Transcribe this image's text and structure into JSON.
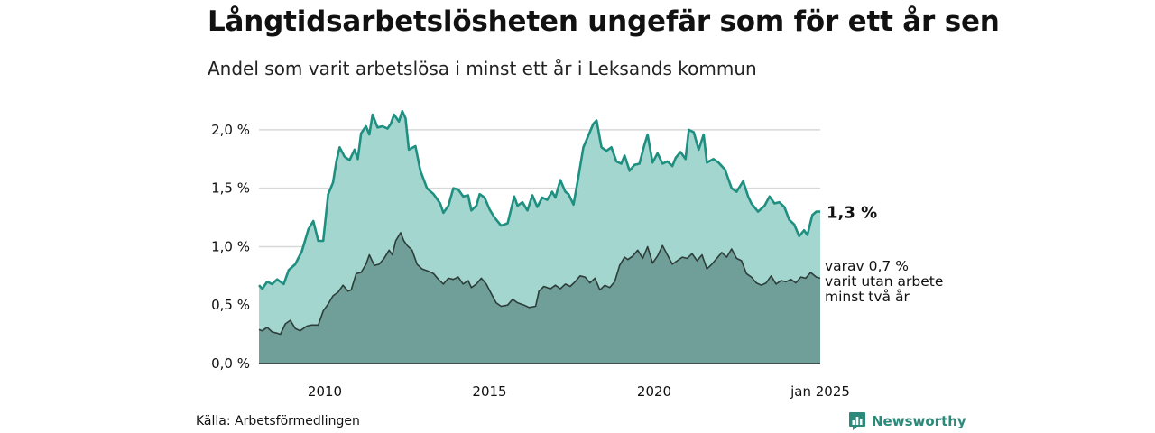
{
  "header": {
    "title": "Långtidsarbetslösheten ungefär som för ett år sen",
    "subtitle": "Andel som varit arbetslösa i minst ett år i Leksands kommun"
  },
  "footer": {
    "source": "Källa: Arbetsförmedlingen",
    "brand": "Newsworthy"
  },
  "colors": {
    "total_line": "#1e8f80",
    "total_fill": "#a3d6cf",
    "long_line": "#2d3d3a",
    "long_fill": "#6f9f98",
    "grid": "#d8d8d8"
  },
  "icons": {
    "brand_logo": "newsworthy-bar-icon"
  },
  "chart_data": {
    "type": "area",
    "x_start": "2008-01",
    "x_end": "2025-01",
    "x_ticks": [
      {
        "value": 2010,
        "label": "2010"
      },
      {
        "value": 2015,
        "label": "2015"
      },
      {
        "value": 2020,
        "label": "2020"
      },
      {
        "value": 2025.04,
        "label": "jan 2025"
      }
    ],
    "y_ticks": [
      {
        "value": 0.0,
        "label": "0,0 %"
      },
      {
        "value": 0.5,
        "label": "0,5 %"
      },
      {
        "value": 1.0,
        "label": "1,0 %"
      },
      {
        "value": 1.5,
        "label": "1,5 %"
      },
      {
        "value": 2.0,
        "label": "2,0 %"
      }
    ],
    "ylim": [
      0,
      2.2
    ],
    "grid": "horizontal",
    "series": [
      {
        "key": "total",
        "end_label": "1,3 %",
        "points": [
          [
            2008.0,
            0.67
          ],
          [
            2008.1,
            0.64
          ],
          [
            2008.25,
            0.7
          ],
          [
            2008.4,
            0.68
          ],
          [
            2008.55,
            0.72
          ],
          [
            2008.75,
            0.68
          ],
          [
            2008.9,
            0.8
          ],
          [
            2009.1,
            0.85
          ],
          [
            2009.3,
            0.96
          ],
          [
            2009.5,
            1.15
          ],
          [
            2009.65,
            1.22
          ],
          [
            2009.8,
            1.05
          ],
          [
            2009.95,
            1.05
          ],
          [
            2010.1,
            1.45
          ],
          [
            2010.25,
            1.55
          ],
          [
            2010.35,
            1.73
          ],
          [
            2010.45,
            1.85
          ],
          [
            2010.6,
            1.77
          ],
          [
            2010.75,
            1.74
          ],
          [
            2010.9,
            1.83
          ],
          [
            2011.0,
            1.75
          ],
          [
            2011.1,
            1.97
          ],
          [
            2011.25,
            2.03
          ],
          [
            2011.35,
            1.96
          ],
          [
            2011.45,
            2.13
          ],
          [
            2011.6,
            2.02
          ],
          [
            2011.75,
            2.03
          ],
          [
            2011.9,
            2.01
          ],
          [
            2012.0,
            2.05
          ],
          [
            2012.1,
            2.13
          ],
          [
            2012.25,
            2.07
          ],
          [
            2012.35,
            2.16
          ],
          [
            2012.45,
            2.1
          ],
          [
            2012.55,
            1.83
          ],
          [
            2012.75,
            1.86
          ],
          [
            2012.9,
            1.65
          ],
          [
            2013.1,
            1.5
          ],
          [
            2013.3,
            1.45
          ],
          [
            2013.5,
            1.37
          ],
          [
            2013.6,
            1.29
          ],
          [
            2013.75,
            1.35
          ],
          [
            2013.9,
            1.5
          ],
          [
            2014.05,
            1.49
          ],
          [
            2014.2,
            1.43
          ],
          [
            2014.35,
            1.44
          ],
          [
            2014.45,
            1.31
          ],
          [
            2014.6,
            1.35
          ],
          [
            2014.7,
            1.45
          ],
          [
            2014.85,
            1.42
          ],
          [
            2015.0,
            1.32
          ],
          [
            2015.15,
            1.25
          ],
          [
            2015.35,
            1.18
          ],
          [
            2015.55,
            1.2
          ],
          [
            2015.75,
            1.43
          ],
          [
            2015.85,
            1.35
          ],
          [
            2016.0,
            1.38
          ],
          [
            2016.15,
            1.31
          ],
          [
            2016.3,
            1.44
          ],
          [
            2016.45,
            1.34
          ],
          [
            2016.6,
            1.42
          ],
          [
            2016.75,
            1.4
          ],
          [
            2016.9,
            1.47
          ],
          [
            2017.0,
            1.42
          ],
          [
            2017.15,
            1.57
          ],
          [
            2017.3,
            1.47
          ],
          [
            2017.4,
            1.45
          ],
          [
            2017.55,
            1.36
          ],
          [
            2017.7,
            1.6
          ],
          [
            2017.85,
            1.85
          ],
          [
            2018.0,
            1.95
          ],
          [
            2018.15,
            2.05
          ],
          [
            2018.25,
            2.08
          ],
          [
            2018.4,
            1.85
          ],
          [
            2018.55,
            1.82
          ],
          [
            2018.7,
            1.85
          ],
          [
            2018.85,
            1.73
          ],
          [
            2019.0,
            1.71
          ],
          [
            2019.1,
            1.78
          ],
          [
            2019.25,
            1.65
          ],
          [
            2019.4,
            1.7
          ],
          [
            2019.55,
            1.71
          ],
          [
            2019.7,
            1.87
          ],
          [
            2019.8,
            1.96
          ],
          [
            2019.95,
            1.72
          ],
          [
            2020.1,
            1.8
          ],
          [
            2020.25,
            1.71
          ],
          [
            2020.4,
            1.73
          ],
          [
            2020.55,
            1.69
          ],
          [
            2020.65,
            1.76
          ],
          [
            2020.8,
            1.81
          ],
          [
            2020.95,
            1.75
          ],
          [
            2021.05,
            2.0
          ],
          [
            2021.2,
            1.98
          ],
          [
            2021.35,
            1.83
          ],
          [
            2021.5,
            1.96
          ],
          [
            2021.6,
            1.72
          ],
          [
            2021.8,
            1.75
          ],
          [
            2021.95,
            1.72
          ],
          [
            2022.15,
            1.66
          ],
          [
            2022.35,
            1.5
          ],
          [
            2022.5,
            1.47
          ],
          [
            2022.7,
            1.56
          ],
          [
            2022.85,
            1.43
          ],
          [
            2022.95,
            1.37
          ],
          [
            2023.15,
            1.3
          ],
          [
            2023.35,
            1.35
          ],
          [
            2023.5,
            1.43
          ],
          [
            2023.65,
            1.37
          ],
          [
            2023.8,
            1.38
          ],
          [
            2023.95,
            1.34
          ],
          [
            2024.1,
            1.23
          ],
          [
            2024.25,
            1.19
          ],
          [
            2024.4,
            1.09
          ],
          [
            2024.55,
            1.14
          ],
          [
            2024.65,
            1.1
          ],
          [
            2024.8,
            1.27
          ],
          [
            2024.92,
            1.3
          ],
          [
            2025.04,
            1.3
          ]
        ]
      },
      {
        "key": "long",
        "end_label": "varav 0,7 %\nvarit utan arbete\nminst två år",
        "points": [
          [
            2008.0,
            0.29
          ],
          [
            2008.1,
            0.28
          ],
          [
            2008.25,
            0.31
          ],
          [
            2008.4,
            0.27
          ],
          [
            2008.55,
            0.26
          ],
          [
            2008.65,
            0.25
          ],
          [
            2008.8,
            0.34
          ],
          [
            2008.95,
            0.37
          ],
          [
            2009.1,
            0.3
          ],
          [
            2009.25,
            0.28
          ],
          [
            2009.45,
            0.32
          ],
          [
            2009.6,
            0.33
          ],
          [
            2009.8,
            0.33
          ],
          [
            2009.95,
            0.45
          ],
          [
            2010.1,
            0.51
          ],
          [
            2010.25,
            0.58
          ],
          [
            2010.4,
            0.61
          ],
          [
            2010.55,
            0.67
          ],
          [
            2010.7,
            0.62
          ],
          [
            2010.8,
            0.63
          ],
          [
            2010.95,
            0.77
          ],
          [
            2011.1,
            0.78
          ],
          [
            2011.25,
            0.85
          ],
          [
            2011.35,
            0.93
          ],
          [
            2011.5,
            0.84
          ],
          [
            2011.65,
            0.85
          ],
          [
            2011.8,
            0.9
          ],
          [
            2011.95,
            0.97
          ],
          [
            2012.05,
            0.93
          ],
          [
            2012.15,
            1.05
          ],
          [
            2012.3,
            1.12
          ],
          [
            2012.4,
            1.05
          ],
          [
            2012.5,
            1.01
          ],
          [
            2012.65,
            0.97
          ],
          [
            2012.8,
            0.85
          ],
          [
            2012.95,
            0.81
          ],
          [
            2013.15,
            0.79
          ],
          [
            2013.3,
            0.77
          ],
          [
            2013.45,
            0.72
          ],
          [
            2013.6,
            0.68
          ],
          [
            2013.75,
            0.73
          ],
          [
            2013.9,
            0.72
          ],
          [
            2014.05,
            0.74
          ],
          [
            2014.2,
            0.68
          ],
          [
            2014.35,
            0.71
          ],
          [
            2014.45,
            0.65
          ],
          [
            2014.6,
            0.68
          ],
          [
            2014.75,
            0.73
          ],
          [
            2014.9,
            0.68
          ],
          [
            2015.05,
            0.6
          ],
          [
            2015.2,
            0.52
          ],
          [
            2015.35,
            0.49
          ],
          [
            2015.55,
            0.5
          ],
          [
            2015.7,
            0.55
          ],
          [
            2015.85,
            0.52
          ],
          [
            2016.05,
            0.5
          ],
          [
            2016.2,
            0.48
          ],
          [
            2016.4,
            0.49
          ],
          [
            2016.5,
            0.62
          ],
          [
            2016.65,
            0.66
          ],
          [
            2016.85,
            0.64
          ],
          [
            2017.0,
            0.67
          ],
          [
            2017.15,
            0.64
          ],
          [
            2017.3,
            0.68
          ],
          [
            2017.45,
            0.66
          ],
          [
            2017.6,
            0.7
          ],
          [
            2017.75,
            0.75
          ],
          [
            2017.9,
            0.74
          ],
          [
            2018.05,
            0.69
          ],
          [
            2018.2,
            0.73
          ],
          [
            2018.35,
            0.63
          ],
          [
            2018.5,
            0.67
          ],
          [
            2018.65,
            0.65
          ],
          [
            2018.8,
            0.7
          ],
          [
            2018.95,
            0.84
          ],
          [
            2019.1,
            0.91
          ],
          [
            2019.2,
            0.89
          ],
          [
            2019.35,
            0.92
          ],
          [
            2019.5,
            0.97
          ],
          [
            2019.65,
            0.9
          ],
          [
            2019.8,
            1.0
          ],
          [
            2019.95,
            0.86
          ],
          [
            2020.1,
            0.92
          ],
          [
            2020.25,
            1.01
          ],
          [
            2020.4,
            0.93
          ],
          [
            2020.55,
            0.85
          ],
          [
            2020.7,
            0.88
          ],
          [
            2020.85,
            0.91
          ],
          [
            2021.0,
            0.9
          ],
          [
            2021.15,
            0.94
          ],
          [
            2021.3,
            0.88
          ],
          [
            2021.45,
            0.93
          ],
          [
            2021.6,
            0.81
          ],
          [
            2021.75,
            0.85
          ],
          [
            2021.9,
            0.9
          ],
          [
            2022.05,
            0.95
          ],
          [
            2022.2,
            0.91
          ],
          [
            2022.35,
            0.98
          ],
          [
            2022.5,
            0.9
          ],
          [
            2022.65,
            0.88
          ],
          [
            2022.8,
            0.77
          ],
          [
            2022.95,
            0.74
          ],
          [
            2023.1,
            0.69
          ],
          [
            2023.25,
            0.67
          ],
          [
            2023.4,
            0.69
          ],
          [
            2023.55,
            0.75
          ],
          [
            2023.7,
            0.68
          ],
          [
            2023.85,
            0.71
          ],
          [
            2024.0,
            0.7
          ],
          [
            2024.15,
            0.72
          ],
          [
            2024.3,
            0.69
          ],
          [
            2024.45,
            0.74
          ],
          [
            2024.6,
            0.73
          ],
          [
            2024.75,
            0.78
          ],
          [
            2024.92,
            0.74
          ],
          [
            2025.04,
            0.73
          ]
        ]
      }
    ]
  }
}
